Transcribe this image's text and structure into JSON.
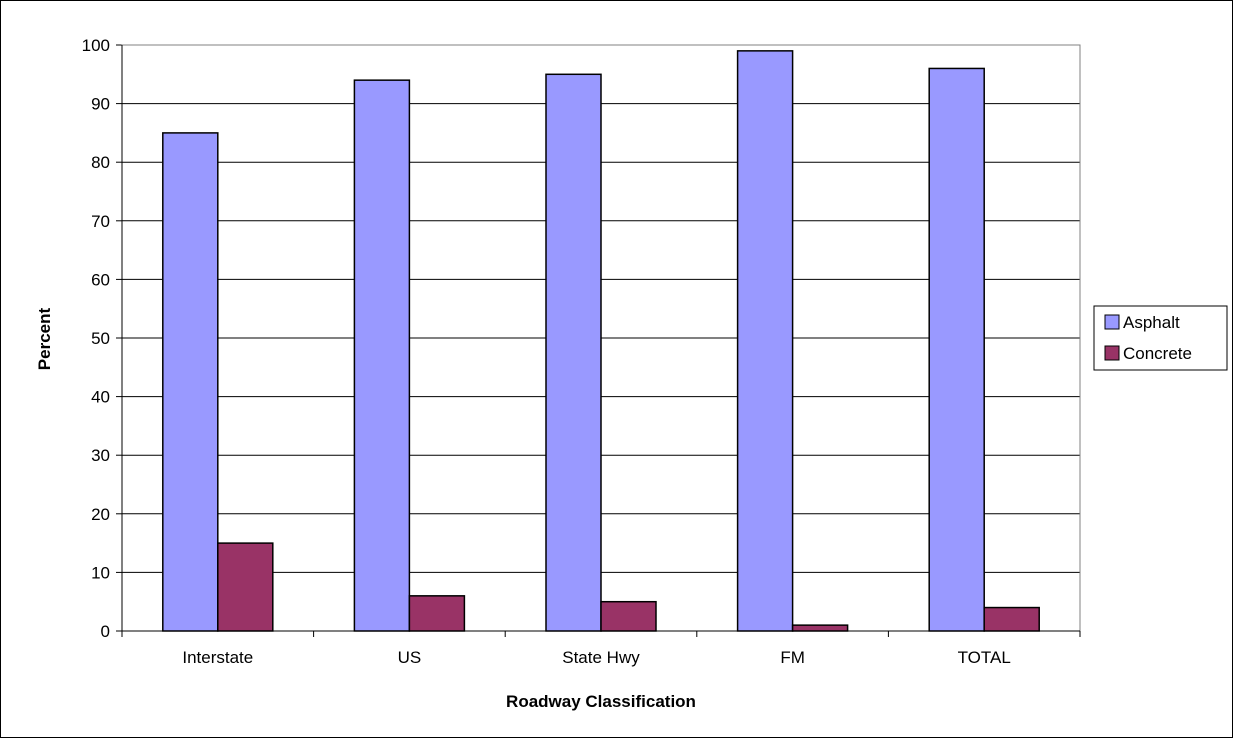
{
  "chart_data": {
    "type": "bar",
    "categories": [
      "Interstate",
      "US",
      "State Hwy",
      "FM",
      "TOTAL"
    ],
    "series": [
      {
        "name": "Asphalt",
        "values": [
          85,
          94,
          95,
          99,
          96
        ],
        "color": "#9999ff"
      },
      {
        "name": "Concrete",
        "values": [
          15,
          6,
          5,
          1,
          4
        ],
        "color": "#993366"
      }
    ],
    "xlabel": "Roadway Classification",
    "ylabel": "Percent",
    "ylim": [
      0,
      100
    ],
    "yticks": [
      "0",
      "10",
      "20",
      "30",
      "40",
      "50",
      "60",
      "70",
      "80",
      "90",
      "100"
    ],
    "grid": true,
    "legend_position": "right"
  }
}
